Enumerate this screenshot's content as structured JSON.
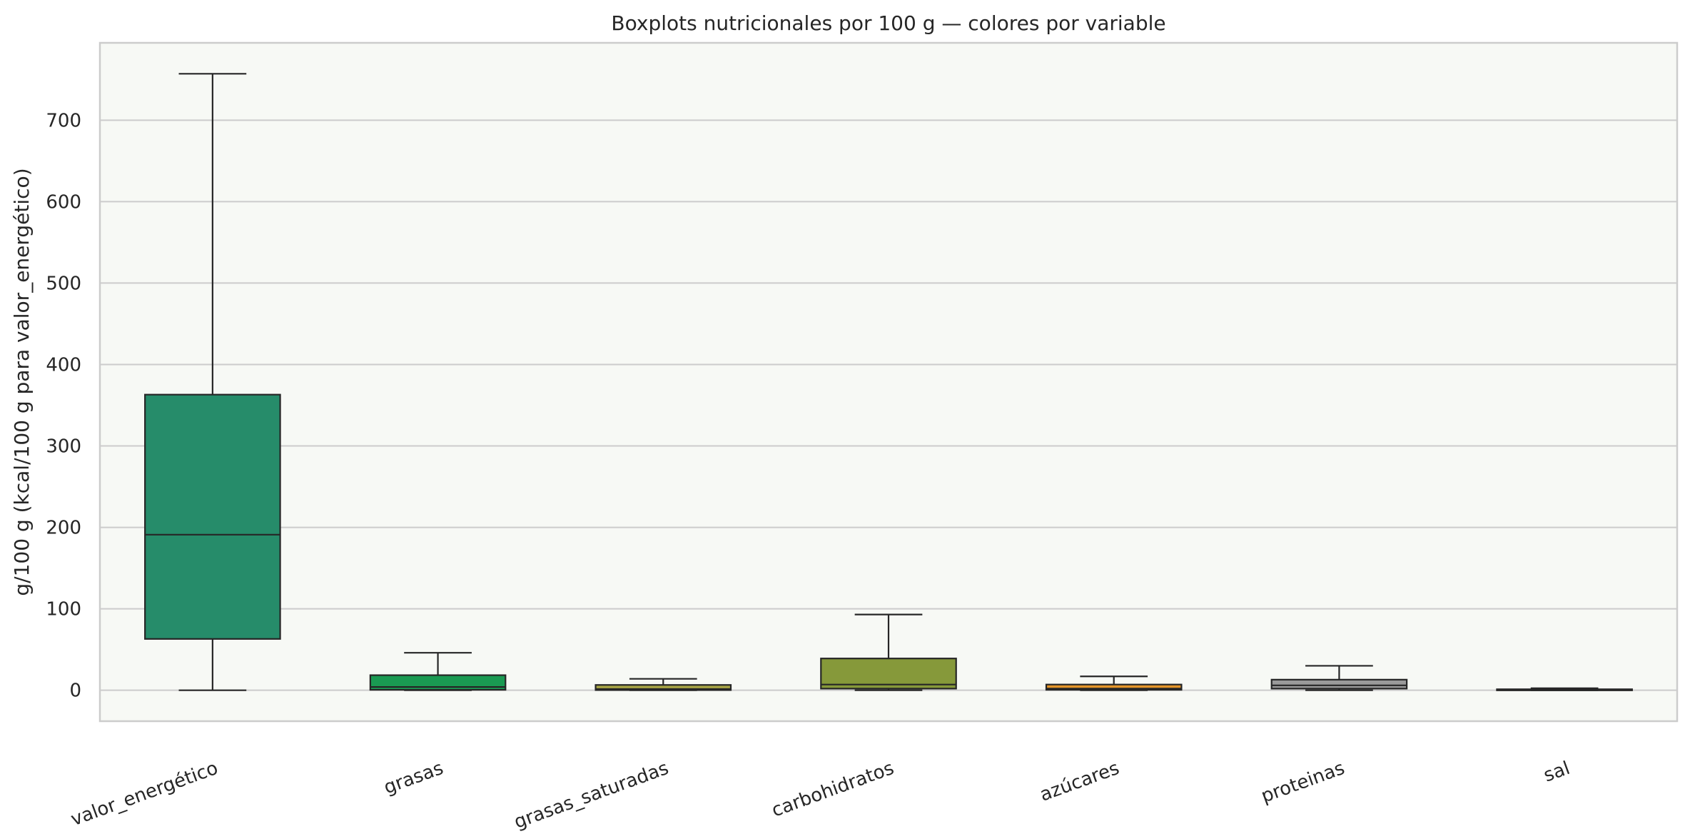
{
  "chart_data": {
    "type": "boxplot",
    "title": "Boxplots nutricionales por 100 g — colores por variable",
    "xlabel": "",
    "ylabel": "g/100 g (kcal/100 g para valor_energético)",
    "ylim": [
      -38,
      795
    ],
    "yticks": [
      0,
      100,
      200,
      300,
      400,
      500,
      600,
      700
    ],
    "grid": "y",
    "background": "#f7f9f5",
    "categories": [
      "valor_energético",
      "grasas",
      "grasas_saturadas",
      "carbohidratos",
      "azúcares",
      "proteinas",
      "sal"
    ],
    "boxes": [
      {
        "name": "valor_energético",
        "whisker_low": 0,
        "q1": 63,
        "median": 191,
        "q3": 363,
        "whisker_high": 757,
        "color": "#268c6a"
      },
      {
        "name": "grasas",
        "whisker_low": 0,
        "q1": 0.5,
        "median": 4,
        "q3": 18.5,
        "whisker_high": 46,
        "color": "#1a9a52"
      },
      {
        "name": "grasas_saturadas",
        "whisker_low": 0,
        "q1": 0.2,
        "median": 1.5,
        "q3": 6.5,
        "whisker_high": 14,
        "color": "#a8a545"
      },
      {
        "name": "carbohidratos",
        "whisker_low": 0,
        "q1": 2,
        "median": 7,
        "q3": 39,
        "whisker_high": 93,
        "color": "#86993a"
      },
      {
        "name": "azúcares",
        "whisker_low": 0,
        "q1": 0.5,
        "median": 2,
        "q3": 7,
        "whisker_high": 17,
        "color": "#e5962a"
      },
      {
        "name": "proteinas",
        "whisker_low": 0,
        "q1": 2,
        "median": 6,
        "q3": 13,
        "whisker_high": 30,
        "color": "#9a9a9a"
      },
      {
        "name": "sal",
        "whisker_low": 0,
        "q1": 0.1,
        "median": 0.5,
        "q3": 1.2,
        "whisker_high": 2.5,
        "color": "#7a9a6a"
      }
    ]
  }
}
